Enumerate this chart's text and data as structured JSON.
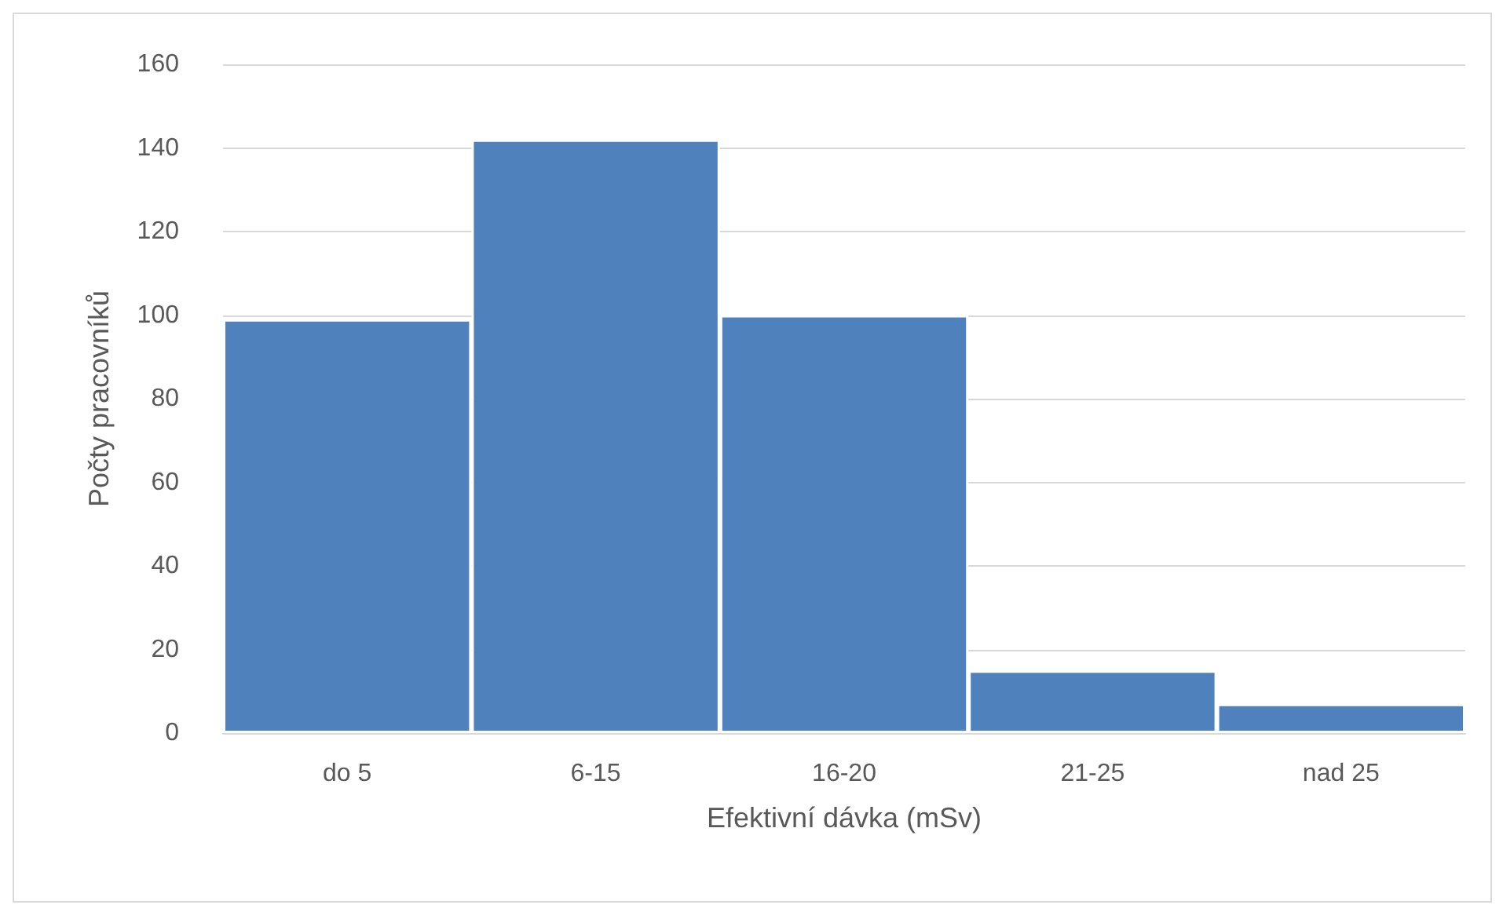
{
  "chart_data": {
    "type": "bar",
    "xlabel": "Efektivní dávka (mSv)",
    "ylabel": "Počty pracovníků",
    "categories": [
      "do 5",
      "6-15",
      "16-20",
      "21-25",
      "nad 25"
    ],
    "values": [
      99,
      142,
      100,
      15,
      7
    ],
    "color": "#4f81bd",
    "ylim": [
      0,
      160
    ],
    "yticks": [
      0,
      20,
      40,
      60,
      80,
      100,
      120,
      140,
      160
    ],
    "grid": "y"
  }
}
